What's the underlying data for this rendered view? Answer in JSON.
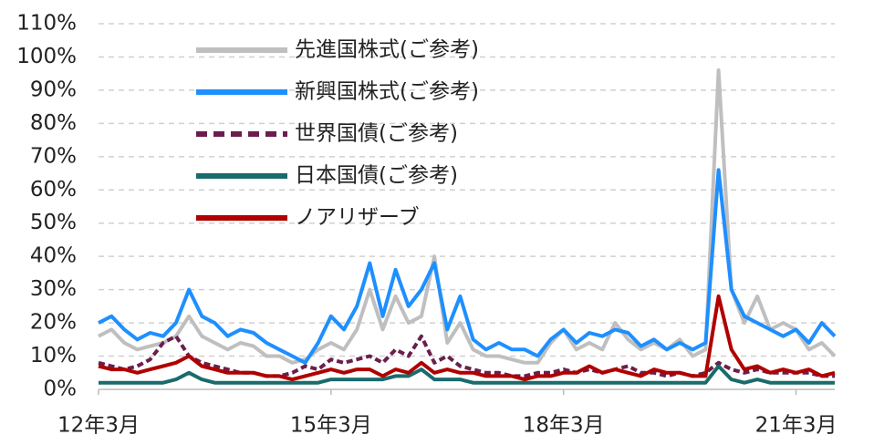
{
  "chart_data": {
    "type": "line",
    "categories": [
      "12年3月",
      null,
      null,
      null,
      null,
      null,
      null,
      null,
      null,
      null,
      null,
      null,
      null,
      null,
      null,
      null,
      null,
      null,
      "15年3月",
      null,
      null,
      null,
      null,
      null,
      null,
      null,
      null,
      null,
      null,
      null,
      null,
      null,
      null,
      null,
      null,
      null,
      "18年3月",
      null,
      null,
      null,
      null,
      null,
      null,
      null,
      null,
      null,
      null,
      null,
      null,
      null,
      null,
      null,
      null,
      null,
      "21年3月",
      null,
      null,
      null
    ],
    "ylim": [
      0,
      110
    ],
    "yticks": [
      {
        "value": 0,
        "label": "0%"
      },
      {
        "value": 10,
        "label": "10%"
      },
      {
        "value": 20,
        "label": "20%"
      },
      {
        "value": 30,
        "label": "30%"
      },
      {
        "value": 40,
        "label": "40%"
      },
      {
        "value": 50,
        "label": "50%"
      },
      {
        "value": 60,
        "label": "60%"
      },
      {
        "value": 70,
        "label": "70%"
      },
      {
        "value": 80,
        "label": "80%"
      },
      {
        "value": 90,
        "label": "90%"
      },
      {
        "value": 100,
        "label": "100%"
      },
      {
        "value": 110,
        "label": "110%"
      }
    ],
    "grid": true,
    "legend": "top",
    "series": [
      {
        "name": "先進国株式(ご参考)",
        "color": "#bfbfbf",
        "dashed": false,
        "values": [
          16,
          18,
          14,
          12,
          13,
          14,
          16,
          22,
          16,
          14,
          12,
          14,
          13,
          10,
          10,
          8,
          9,
          12,
          14,
          12,
          18,
          30,
          18,
          28,
          20,
          22,
          40,
          14,
          20,
          12,
          10,
          10,
          9,
          8,
          8,
          14,
          18,
          12,
          14,
          12,
          20,
          15,
          12,
          14,
          12,
          15,
          10,
          12,
          96,
          30,
          20,
          28,
          18,
          20,
          18,
          12,
          14,
          10
        ]
      },
      {
        "name": "新興国株式(ご参考)",
        "color": "#1e8fff",
        "dashed": false,
        "values": [
          20,
          22,
          18,
          15,
          17,
          16,
          20,
          30,
          22,
          20,
          16,
          18,
          17,
          14,
          12,
          10,
          8,
          14,
          22,
          18,
          25,
          38,
          22,
          36,
          25,
          30,
          38,
          18,
          28,
          15,
          12,
          14,
          12,
          12,
          10,
          15,
          18,
          14,
          17,
          16,
          18,
          17,
          13,
          15,
          12,
          14,
          12,
          14,
          66,
          30,
          22,
          20,
          18,
          16,
          18,
          14,
          20,
          16
        ]
      },
      {
        "name": "世界国債(ご参考)",
        "color": "#6b1e4e",
        "dashed": true,
        "values": [
          8,
          7,
          6,
          7,
          9,
          14,
          16,
          10,
          8,
          7,
          6,
          5,
          5,
          4,
          4,
          5,
          7,
          6,
          9,
          8,
          9,
          10,
          8,
          12,
          10,
          16,
          8,
          10,
          7,
          6,
          5,
          5,
          4,
          4,
          5,
          5,
          6,
          5,
          6,
          5,
          6,
          7,
          5,
          5,
          4,
          5,
          4,
          5,
          8,
          6,
          5,
          6,
          5,
          5,
          5,
          5,
          4,
          4
        ]
      },
      {
        "name": "日本国債(ご参考)",
        "color": "#1a6b6b",
        "dashed": false,
        "values": [
          2,
          2,
          2,
          2,
          2,
          2,
          3,
          5,
          3,
          2,
          2,
          2,
          2,
          2,
          2,
          2,
          2,
          2,
          3,
          3,
          3,
          3,
          3,
          4,
          4,
          6,
          3,
          3,
          3,
          2,
          2,
          2,
          2,
          2,
          2,
          2,
          2,
          2,
          2,
          2,
          2,
          2,
          2,
          2,
          2,
          2,
          2,
          2,
          7,
          3,
          2,
          3,
          2,
          2,
          2,
          2,
          2,
          2
        ]
      },
      {
        "name": "ノアリザーブ",
        "color": "#b00000",
        "dashed": false,
        "values": [
          7,
          6,
          6,
          5,
          6,
          7,
          8,
          10,
          7,
          6,
          5,
          5,
          5,
          4,
          4,
          3,
          4,
          5,
          6,
          5,
          6,
          6,
          4,
          6,
          5,
          8,
          5,
          6,
          5,
          5,
          4,
          4,
          4,
          3,
          4,
          4,
          5,
          5,
          7,
          5,
          6,
          5,
          4,
          6,
          5,
          5,
          4,
          4,
          28,
          12,
          6,
          7,
          5,
          6,
          5,
          6,
          4,
          5
        ]
      }
    ]
  }
}
